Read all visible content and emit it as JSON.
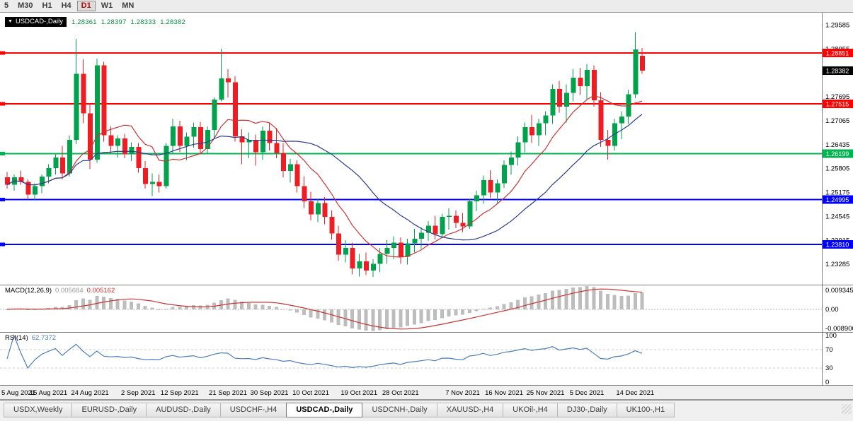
{
  "toolbar": {
    "timeframes": [
      "5",
      "M30",
      "H1",
      "H4",
      "D1",
      "W1",
      "MN"
    ],
    "active_timeframe": "D1"
  },
  "icons": {
    "dropdown": "▼"
  },
  "chart_header": {
    "symbol": "USDCAD-,Daily",
    "open": "1.28361",
    "high": "1.28397",
    "low": "1.28333",
    "close": "1.28382"
  },
  "price_axis": {
    "ticks": [
      "1.29585",
      "1.28955",
      "1.28325",
      "1.27695",
      "1.27065",
      "1.26435",
      "1.25805",
      "1.25175",
      "1.24545",
      "1.23915",
      "1.23285"
    ],
    "badges": [
      {
        "value": "1.28851",
        "color": "#ff0000"
      },
      {
        "value": "1.28382",
        "color": "#000000"
      },
      {
        "value": "1.27515",
        "color": "#ff0000"
      },
      {
        "value": "1.26199",
        "color": "#00b450"
      },
      {
        "value": "1.24995",
        "color": "#0000ff"
      },
      {
        "value": "1.23810",
        "color": "#0000ff"
      }
    ]
  },
  "indicators": {
    "macd": {
      "label": "MACD(12,26,9)",
      "value_main": "0.005684",
      "value_signal": "0.005162",
      "axis_top": "0.009345",
      "axis_zero": "0.00",
      "axis_bottom": "-0.008900"
    },
    "rsi": {
      "label": "RSI(14)",
      "value": "62.7372",
      "axis": [
        "100",
        "70",
        "30",
        "0"
      ]
    }
  },
  "time_axis": {
    "labels": [
      "5 Aug 2021",
      "15 Aug 2021",
      "24 Aug 2021",
      "2 Sep 2021",
      "12 Sep 2021",
      "21 Sep 2021",
      "30 Sep 2021",
      "10 Oct 2021",
      "19 Oct 2021",
      "28 Oct 2021",
      "7 Nov 2021",
      "16 Nov 2021",
      "25 Nov 2021",
      "5 Dec 2021",
      "14 Dec 2021"
    ]
  },
  "tabs": {
    "items": [
      "USDX,Weekly",
      "EURUSD-,Daily",
      "AUDUSD-,Daily",
      "USDCHF-,H4",
      "USDCAD-,Daily",
      "USDCNH-,Daily",
      "XAUUSD-,H4",
      "UKOil-,H4",
      "DJ30-,Daily",
      "UK100-,H1"
    ],
    "active": "USDCAD-,Daily"
  },
  "chart_data": {
    "type": "candlestick",
    "symbol": "USDCAD-",
    "timeframe": "Daily",
    "title": "USDCAD-,Daily",
    "ylim": [
      1.2275,
      1.2991
    ],
    "x_tick_indices": [
      0,
      6,
      12,
      19,
      25,
      32,
      38,
      44,
      51,
      57,
      66,
      72,
      78,
      84,
      91
    ],
    "x_tick_labels": [
      "5 Aug 2021",
      "15 Aug 2021",
      "24 Aug 2021",
      "2 Sep 2021",
      "12 Sep 2021",
      "21 Sep 2021",
      "30 Sep 2021",
      "10 Oct 2021",
      "19 Oct 2021",
      "28 Oct 2021",
      "7 Nov 2021",
      "16 Nov 2021",
      "25 Nov 2021",
      "5 Dec 2021",
      "14 Dec 2021"
    ],
    "current_price": 1.28382,
    "hlines": [
      {
        "price": 1.28851,
        "color": "#ff0000",
        "role": "resistance"
      },
      {
        "price": 1.27515,
        "color": "#ff0000",
        "role": "resistance"
      },
      {
        "price": 1.26199,
        "color": "#00b450",
        "role": "pivot"
      },
      {
        "price": 1.24995,
        "color": "#0000ff",
        "role": "support"
      },
      {
        "price": 1.2381,
        "color": "#0000ff",
        "role": "support"
      }
    ],
    "ma": [
      {
        "period": 9,
        "color": "#cc3333"
      },
      {
        "period": 22,
        "color": "#2b3990"
      }
    ],
    "macd": {
      "fast": 12,
      "slow": 26,
      "signal_period": 9,
      "range": [
        -0.0089,
        0.009345
      ],
      "current_main": 0.005684,
      "current_signal": 0.005162,
      "hist_color": "#bdbdbd",
      "signal_color": "#cc3333"
    },
    "rsi": {
      "period": 14,
      "current": 62.7372,
      "levels": [
        70,
        30
      ],
      "color": "#4a7ebb",
      "range": [
        0,
        100
      ]
    },
    "colors": {
      "up": "#00a24b",
      "down": "#ee1d23",
      "background": "#ffffff",
      "axis_text": "#000000"
    },
    "ohlc": [
      [
        1.2558,
        1.2572,
        1.2528,
        1.2538
      ],
      [
        1.2538,
        1.2565,
        1.2522,
        1.2558
      ],
      [
        1.2558,
        1.2575,
        1.2538,
        1.2546
      ],
      [
        1.2546,
        1.2552,
        1.2502,
        1.2512
      ],
      [
        1.2512,
        1.2542,
        1.2498,
        1.2534
      ],
      [
        1.2534,
        1.2565,
        1.2516,
        1.256
      ],
      [
        1.256,
        1.2592,
        1.2542,
        1.2582
      ],
      [
        1.2582,
        1.2618,
        1.2565,
        1.261
      ],
      [
        1.261,
        1.264,
        1.2552,
        1.2568
      ],
      [
        1.2568,
        1.2668,
        1.256,
        1.2656
      ],
      [
        1.2656,
        1.2922,
        1.2645,
        1.283
      ],
      [
        1.283,
        1.2868,
        1.27,
        1.2726
      ],
      [
        1.2726,
        1.2752,
        1.258,
        1.2604
      ],
      [
        1.2604,
        1.287,
        1.2596,
        1.2852
      ],
      [
        1.2852,
        1.2862,
        1.2652,
        1.2668
      ],
      [
        1.2668,
        1.2692,
        1.2622,
        1.264
      ],
      [
        1.264,
        1.2668,
        1.261,
        1.266
      ],
      [
        1.266,
        1.2672,
        1.2608,
        1.2618
      ],
      [
        1.2618,
        1.265,
        1.26,
        1.2638
      ],
      [
        1.2638,
        1.2648,
        1.257,
        1.2582
      ],
      [
        1.2582,
        1.26,
        1.2528,
        1.254
      ],
      [
        1.254,
        1.2568,
        1.2508,
        1.2546
      ],
      [
        1.2546,
        1.2565,
        1.2518,
        1.2534
      ],
      [
        1.2534,
        1.2648,
        1.2528,
        1.264
      ],
      [
        1.264,
        1.2712,
        1.2622,
        1.2692
      ],
      [
        1.2692,
        1.2706,
        1.2624,
        1.264
      ],
      [
        1.264,
        1.2676,
        1.2602,
        1.2665
      ],
      [
        1.2665,
        1.2702,
        1.2636,
        1.269
      ],
      [
        1.269,
        1.2704,
        1.2618,
        1.2632
      ],
      [
        1.2632,
        1.2692,
        1.262,
        1.2682
      ],
      [
        1.2682,
        1.2768,
        1.266,
        1.2762
      ],
      [
        1.2762,
        1.2896,
        1.2758,
        1.2818
      ],
      [
        1.2818,
        1.2842,
        1.2768,
        1.2808
      ],
      [
        1.2808,
        1.2824,
        1.2652,
        1.2666
      ],
      [
        1.2666,
        1.2684,
        1.2592,
        1.265
      ],
      [
        1.265,
        1.2676,
        1.2608,
        1.2656
      ],
      [
        1.2656,
        1.267,
        1.2588,
        1.2624
      ],
      [
        1.2624,
        1.2692,
        1.2604,
        1.268
      ],
      [
        1.268,
        1.27,
        1.2628,
        1.2648
      ],
      [
        1.2648,
        1.2688,
        1.2608,
        1.2622
      ],
      [
        1.2622,
        1.2648,
        1.2558,
        1.2574
      ],
      [
        1.2574,
        1.2606,
        1.2544,
        1.2592
      ],
      [
        1.2592,
        1.2602,
        1.2518,
        1.2534
      ],
      [
        1.2534,
        1.256,
        1.2478,
        1.2494
      ],
      [
        1.2494,
        1.252,
        1.2444,
        1.246
      ],
      [
        1.246,
        1.2502,
        1.244,
        1.249
      ],
      [
        1.249,
        1.2506,
        1.2434,
        1.2454
      ],
      [
        1.2454,
        1.247,
        1.2394,
        1.241
      ],
      [
        1.241,
        1.243,
        1.2338,
        1.2354
      ],
      [
        1.2354,
        1.2392,
        1.2334,
        1.2372
      ],
      [
        1.2372,
        1.2386,
        1.2302,
        1.2318
      ],
      [
        1.2318,
        1.2356,
        1.2296,
        1.2336
      ],
      [
        1.2336,
        1.236,
        1.23,
        1.2312
      ],
      [
        1.2312,
        1.2342,
        1.2295,
        1.233
      ],
      [
        1.233,
        1.2372,
        1.2308,
        1.2356
      ],
      [
        1.2356,
        1.2392,
        1.233,
        1.2372
      ],
      [
        1.2372,
        1.2402,
        1.2342,
        1.2386
      ],
      [
        1.2386,
        1.24,
        1.233,
        1.2348
      ],
      [
        1.2348,
        1.2396,
        1.2328,
        1.2384
      ],
      [
        1.2384,
        1.2422,
        1.236,
        1.2396
      ],
      [
        1.2396,
        1.2426,
        1.237,
        1.2412
      ],
      [
        1.2412,
        1.2442,
        1.239,
        1.243
      ],
      [
        1.243,
        1.2456,
        1.2394,
        1.2408
      ],
      [
        1.2408,
        1.2462,
        1.2398,
        1.2454
      ],
      [
        1.2454,
        1.2476,
        1.242,
        1.2456
      ],
      [
        1.2456,
        1.247,
        1.2424,
        1.2438
      ],
      [
        1.2438,
        1.2464,
        1.2414,
        1.2428
      ],
      [
        1.2428,
        1.2502,
        1.2422,
        1.2494
      ],
      [
        1.2494,
        1.2522,
        1.2468,
        1.251
      ],
      [
        1.251,
        1.2562,
        1.2488,
        1.255
      ],
      [
        1.255,
        1.2576,
        1.2504,
        1.2518
      ],
      [
        1.2518,
        1.2552,
        1.249,
        1.2542
      ],
      [
        1.2542,
        1.2602,
        1.253,
        1.259
      ],
      [
        1.259,
        1.2626,
        1.2564,
        1.261
      ],
      [
        1.261,
        1.2666,
        1.2588,
        1.265
      ],
      [
        1.265,
        1.2702,
        1.2624,
        1.269
      ],
      [
        1.269,
        1.2722,
        1.2648,
        1.2668
      ],
      [
        1.2668,
        1.2712,
        1.264,
        1.27
      ],
      [
        1.27,
        1.2732,
        1.2668,
        1.272
      ],
      [
        1.272,
        1.2802,
        1.2698,
        1.279
      ],
      [
        1.279,
        1.2812,
        1.2728,
        1.2744
      ],
      [
        1.2744,
        1.2802,
        1.2702,
        1.278
      ],
      [
        1.278,
        1.2842,
        1.2758,
        1.282
      ],
      [
        1.282,
        1.2846,
        1.2774,
        1.2798
      ],
      [
        1.2798,
        1.2856,
        1.2764,
        1.284
      ],
      [
        1.284,
        1.2852,
        1.2744,
        1.276
      ],
      [
        1.276,
        1.2782,
        1.2638,
        1.2656
      ],
      [
        1.2656,
        1.2682,
        1.2604,
        1.264
      ],
      [
        1.264,
        1.2712,
        1.2628,
        1.27
      ],
      [
        1.27,
        1.2732,
        1.2658,
        1.2718
      ],
      [
        1.2718,
        1.2788,
        1.2698,
        1.2776
      ],
      [
        1.2776,
        1.294,
        1.2766,
        1.2894
      ],
      [
        1.2878,
        1.2898,
        1.283,
        1.28382
      ]
    ]
  }
}
